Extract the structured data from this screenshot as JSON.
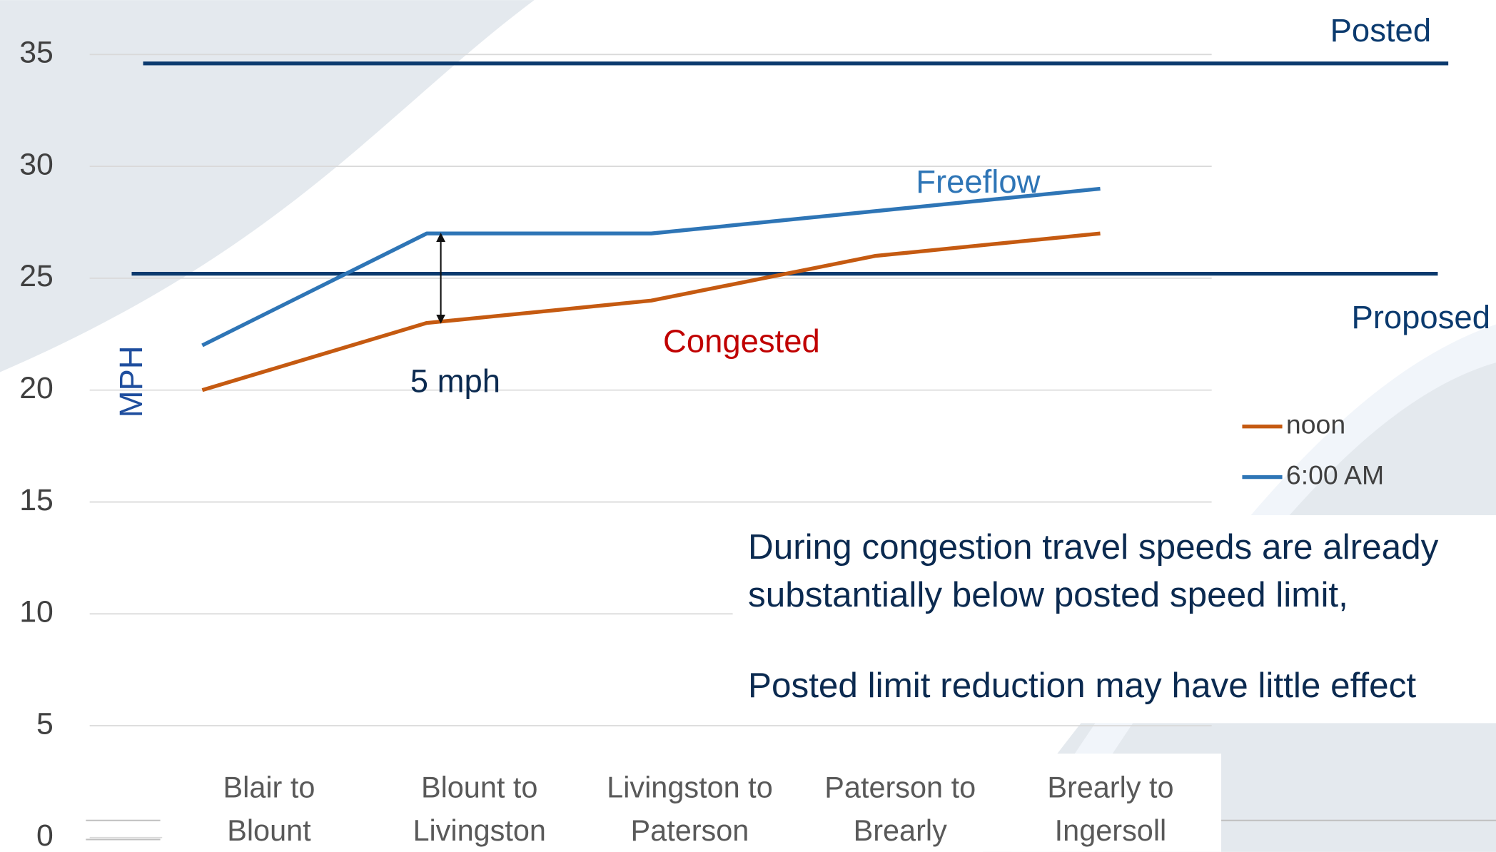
{
  "chart_data": {
    "type": "line",
    "y_label": "MPH",
    "categories": [
      "Blair to Blount",
      "Blount to Livingston",
      "Livingston to Paterson",
      "Paterson to Brearly",
      "Brearly to Ingersoll"
    ],
    "series": [
      {
        "name": "noon",
        "color": "#c55a11",
        "values": [
          20,
          23,
          24,
          26,
          27
        ]
      },
      {
        "name": "6:00 AM",
        "color": "#2e75b6",
        "values": [
          22,
          27,
          27,
          28,
          29
        ]
      }
    ],
    "ylim": [
      0,
      35
    ],
    "yticks": [
      0,
      5,
      10,
      15,
      20,
      25,
      30,
      35
    ],
    "grid": true,
    "reference_lines": [
      {
        "label": "Posted",
        "value": 34.6,
        "color": "#0b3a6e"
      },
      {
        "label": "Proposed",
        "value": 25.2,
        "color": "#0b3a6e"
      }
    ],
    "annotations": {
      "freeflow": "Freeflow",
      "congested": "Congested",
      "gap": "5 mph",
      "note_lines": [
        "During congestion travel speeds are already",
        "substantially below posted speed limit,",
        "Posted limit reduction may have little effect"
      ]
    }
  }
}
